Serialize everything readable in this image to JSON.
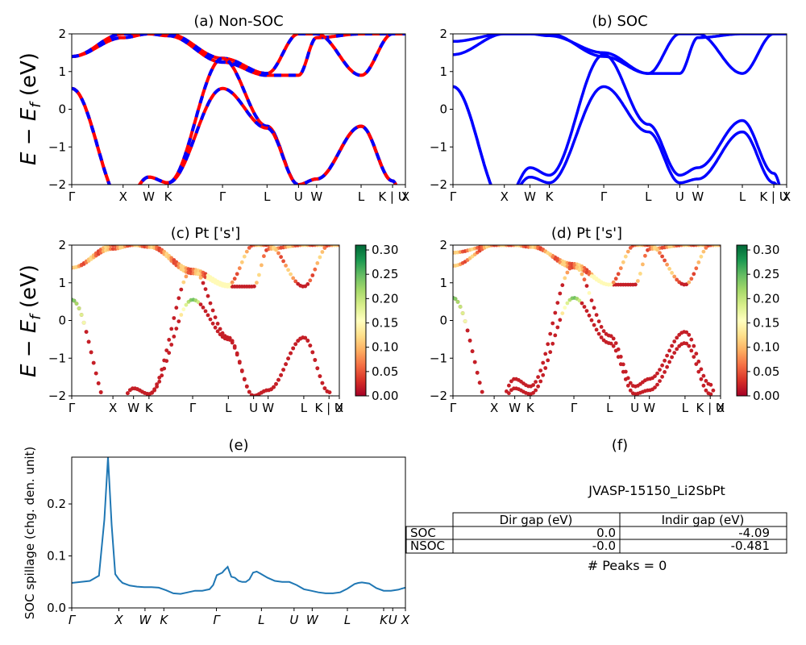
{
  "figure": {
    "ylabel_band": "E − E_f (eV)",
    "k_labels": [
      "Γ",
      "X",
      "W",
      "K",
      "Γ",
      "L",
      "U",
      "W",
      "L",
      "K | U",
      "X"
    ],
    "k_labels_italic": [
      "Γ",
      "X",
      "W",
      "K",
      "Γ",
      "L",
      "U",
      "W",
      "L",
      "K",
      "U",
      "X"
    ]
  },
  "panels": {
    "a": {
      "title": "(a) Non-SOC"
    },
    "b": {
      "title": "(b) SOC"
    },
    "c": {
      "title": "(c)  Pt ['s']"
    },
    "d": {
      "title": "(d) Pt ['s']"
    },
    "e": {
      "title": "(e)",
      "ylabel": "SOC spillage (chg. den. unit)"
    },
    "f": {
      "title": "(f)",
      "caption": "JVASP-15150_Li2SbPt",
      "peaks_text": "# Peaks = 0"
    }
  },
  "colors": {
    "non_soc_up": "#ff0000",
    "non_soc_dn": "#0000ff",
    "soc": "#0000ff",
    "spillage": "#1f77b4",
    "colormap": "RdYlGn"
  },
  "table": {
    "headers": [
      "",
      "Dir gap (eV)",
      "Indir gap (eV)"
    ],
    "rows": [
      [
        "SOC",
        "0.0",
        "-4.09"
      ],
      [
        "NSOC",
        "-0.0",
        "-0.481"
      ]
    ]
  },
  "chart_data": [
    {
      "type": "line",
      "title": "(a) Non-SOC",
      "ylabel": "E − E_f (eV)",
      "ylim": [
        -2,
        2
      ],
      "yticks": [
        -2,
        -1,
        0,
        1,
        2
      ],
      "x": [
        0,
        1.414,
        2.121,
        2.652,
        4.151,
        5.376,
        6.243,
        6.742,
        7.966,
        8.832,
        9.186
      ],
      "xticklabels": [
        "Γ",
        "X",
        "W",
        "K",
        "Γ",
        "L",
        "U",
        "W",
        "L",
        "K | U",
        "X"
      ],
      "series": [
        {
          "values": [
            1.4,
            2.0,
            2.0,
            1.95,
            1.25,
            0.9,
            0.9,
            1.9,
            2.0,
            2.0,
            2.0
          ]
        },
        {
          "values": [
            1.4,
            1.9,
            2.0,
            2.0,
            1.35,
            0.95,
            2.0,
            2.0,
            0.9,
            2.0,
            2.0
          ]
        },
        {
          "values": [
            0.55,
            -2.5,
            -1.8,
            -1.95,
            1.35,
            -0.45,
            -2.0,
            -1.85,
            -0.45,
            -1.9,
            -2.6
          ]
        },
        {
          "values": [
            0.55,
            -2.5,
            -1.8,
            -1.95,
            0.55,
            -0.5,
            -2.0,
            -1.85,
            -0.45,
            -1.9,
            -2.6
          ]
        }
      ]
    },
    {
      "type": "line",
      "title": "(b) SOC",
      "ylim": [
        -2,
        2
      ],
      "yticks": [
        -2,
        -1,
        0,
        1,
        2
      ],
      "x": [
        0,
        1.414,
        2.121,
        2.652,
        4.151,
        5.376,
        6.243,
        6.742,
        7.966,
        8.832,
        9.186
      ],
      "xticklabels": [
        "Γ",
        "X",
        "W",
        "K",
        "Γ",
        "L",
        "U",
        "W",
        "L",
        "K | U",
        "X"
      ],
      "series": [
        {
          "values": [
            1.8,
            2.0,
            2.0,
            1.95,
            1.5,
            0.95,
            0.95,
            1.9,
            2.0,
            2.0,
            2.0
          ]
        },
        {
          "values": [
            1.45,
            2.0,
            2.0,
            2.0,
            1.4,
            0.95,
            2.0,
            2.0,
            0.95,
            2.0,
            2.0
          ]
        },
        {
          "values": [
            0.6,
            -2.5,
            -1.55,
            -1.75,
            1.45,
            -0.4,
            -1.75,
            -1.55,
            -0.3,
            -1.7,
            -2.5
          ]
        },
        {
          "values": [
            0.6,
            -2.5,
            -1.8,
            -1.95,
            0.6,
            -0.6,
            -1.95,
            -1.85,
            -0.6,
            -1.95,
            -2.6
          ]
        }
      ]
    },
    {
      "type": "scatter",
      "title": "(c)  Pt ['s']",
      "ylabel": "E − E_f (eV)",
      "ylim": [
        -2,
        2
      ],
      "yticks": [
        -2,
        -1,
        0,
        1,
        2
      ],
      "colorbar": {
        "range": [
          0,
          0.3
        ],
        "ticks": [
          "0.00",
          "0.05",
          "0.10",
          "0.15",
          "0.20",
          "0.25",
          "0.30"
        ]
      },
      "xticklabels": [
        "Γ",
        "X",
        "W",
        "K",
        "Γ",
        "L",
        "U",
        "W",
        "L",
        "K | U",
        "X"
      ]
    },
    {
      "type": "scatter",
      "title": "(d) Pt ['s']",
      "ylim": [
        -2,
        2
      ],
      "yticks": [
        -2,
        -1,
        0,
        1,
        2
      ],
      "colorbar": {
        "range": [
          0,
          0.3
        ],
        "ticks": [
          "0.00",
          "0.05",
          "0.10",
          "0.15",
          "0.20",
          "0.25",
          "0.30"
        ]
      },
      "xticklabels": [
        "Γ",
        "X",
        "W",
        "K",
        "Γ",
        "L",
        "U",
        "W",
        "L",
        "K | U",
        "X"
      ]
    },
    {
      "type": "line",
      "title": "(e)",
      "ylabel": "SOC spillage (chg. den. unit)",
      "ylim": [
        0,
        0.29
      ],
      "yticks": [
        "0.0",
        "0.1",
        "0.2"
      ],
      "xticklabels": [
        "Γ",
        "X",
        "W",
        "K",
        "Γ",
        "L",
        "U",
        "W",
        "L",
        "K",
        "U",
        "X"
      ],
      "x": [
        0,
        0.25,
        0.5,
        0.75,
        0.9,
        1.0,
        1.1,
        1.2,
        1.3,
        1.4,
        1.6,
        1.8,
        2.0,
        2.2,
        2.4,
        2.6,
        2.8,
        3.0,
        3.2,
        3.4,
        3.6,
        3.8,
        3.9,
        4.0,
        4.1,
        4.15,
        4.2,
        4.3,
        4.4,
        4.5,
        4.6,
        4.7,
        4.75,
        4.8,
        4.9,
        5.0,
        5.1,
        5.2,
        5.3,
        5.4,
        5.6,
        5.8,
        6.0,
        6.2,
        6.4,
        6.6,
        6.8,
        7.0,
        7.2,
        7.4,
        7.6,
        7.8,
        7.9,
        8.0,
        8.2,
        8.4,
        8.6,
        8.8,
        9.0,
        9.1,
        9.2
      ],
      "values": [
        0.048,
        0.05,
        0.052,
        0.062,
        0.17,
        0.29,
        0.16,
        0.065,
        0.055,
        0.048,
        0.043,
        0.041,
        0.04,
        0.04,
        0.039,
        0.034,
        0.028,
        0.027,
        0.03,
        0.033,
        0.033,
        0.036,
        0.044,
        0.063,
        0.066,
        0.068,
        0.072,
        0.079,
        0.06,
        0.058,
        0.052,
        0.05,
        0.05,
        0.05,
        0.055,
        0.068,
        0.07,
        0.066,
        0.062,
        0.058,
        0.052,
        0.05,
        0.05,
        0.044,
        0.036,
        0.033,
        0.03,
        0.028,
        0.028,
        0.03,
        0.037,
        0.046,
        0.048,
        0.049,
        0.047,
        0.038,
        0.033,
        0.033,
        0.035,
        0.037,
        0.039
      ]
    },
    {
      "type": "table",
      "title": "(f)",
      "columns": [
        "Dir gap (eV)",
        "Indir gap (eV)"
      ],
      "rows": [
        {
          "label": "SOC",
          "values": [
            "0.0",
            "-4.09"
          ]
        },
        {
          "label": "NSOC",
          "values": [
            "-0.0",
            "-0.481"
          ]
        }
      ]
    }
  ]
}
